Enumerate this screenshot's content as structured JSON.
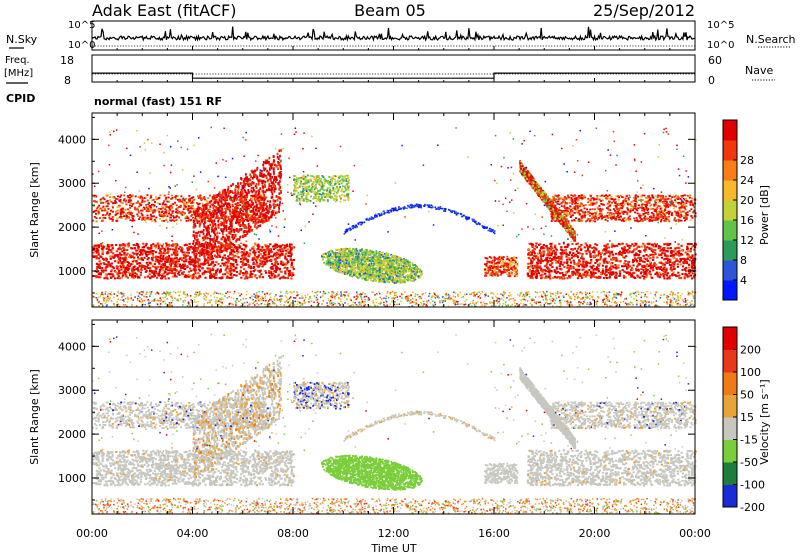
{
  "header": {
    "station": "Adak East (fitACF)",
    "beam": "Beam 05",
    "date": "25/Sep/2012"
  },
  "noise_panel": {
    "left_label": "N.Sky",
    "right_label": "N.Search",
    "ticks": [
      "10^5",
      "10^0"
    ]
  },
  "freq_panel": {
    "left_label_top": "Freq.",
    "left_label_bottom": "[MHz]",
    "left_ticks": [
      "18",
      "8"
    ],
    "right_label": "Nave",
    "right_ticks": [
      "60",
      "0"
    ],
    "freq_series": [
      {
        "x": "00:00",
        "y": 11.3
      },
      {
        "x": "04:00",
        "y": 11.3
      },
      {
        "x": "04:00",
        "y": 9.4
      },
      {
        "x": "16:00",
        "y": 9.4
      },
      {
        "x": "16:00",
        "y": 11.3
      },
      {
        "x": "24:00",
        "y": 11.3
      }
    ]
  },
  "cpid": {
    "label": "CPID",
    "mode": "normal (fast) 151 RF"
  },
  "colors": {
    "power": [
      "#0018ff",
      "#2f54d8",
      "#2c9a59",
      "#62c24a",
      "#c3d236",
      "#f7b82a",
      "#fb7d18",
      "#f0370d",
      "#e00000"
    ],
    "velocity": [
      "#1a2bd8",
      "#1e7d3a",
      "#7ace3a",
      "#c7c7c0",
      "#e8a43a",
      "#f07a18",
      "#e83a1a",
      "#e00000"
    ]
  },
  "chart_data": [
    {
      "type": "heatmap",
      "name": "Power",
      "xlabel": "",
      "ylabel": "Slant Range [km]",
      "x_ticks": [
        "00:00",
        "04:00",
        "08:00",
        "12:00",
        "16:00",
        "20:00",
        "00:00"
      ],
      "y_ticks": [
        1000,
        2000,
        3000,
        4000
      ],
      "ylim": [
        180,
        4600
      ],
      "colorbar": {
        "label": "Power [dB]",
        "ticks": [
          4,
          8,
          12,
          16,
          20,
          24,
          28
        ]
      }
    },
    {
      "type": "heatmap",
      "name": "Velocity",
      "xlabel": "Time UT",
      "ylabel": "Slant Range [km]",
      "x_ticks": [
        "00:00",
        "04:00",
        "08:00",
        "12:00",
        "16:00",
        "20:00",
        "00:00"
      ],
      "y_ticks": [
        1000,
        2000,
        3000,
        4000
      ],
      "ylim": [
        180,
        4600
      ],
      "colorbar": {
        "label": "Velocity [m s⁻¹]",
        "ticks": [
          200,
          100,
          50,
          15,
          -15,
          -50,
          -100,
          -200
        ]
      }
    }
  ]
}
